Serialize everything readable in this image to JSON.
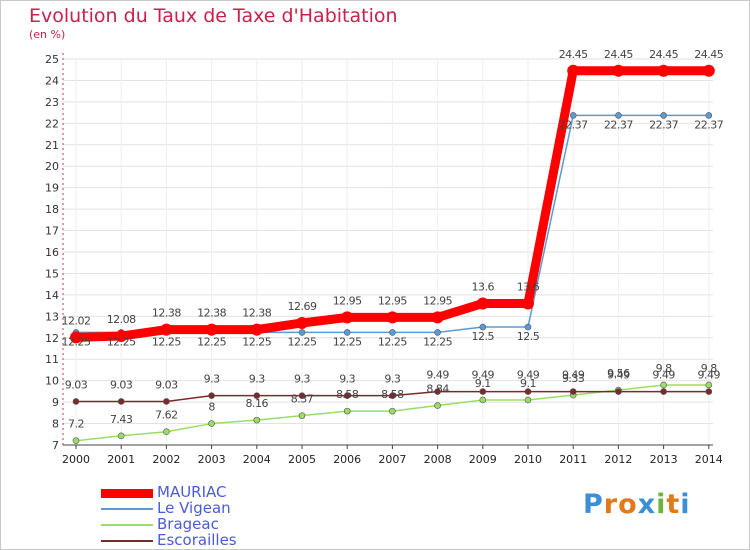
{
  "chart_data": {
    "type": "line",
    "title": "Evolution du Taux de Taxe d'Habitation",
    "subtitle": "(en %)",
    "categories": [
      "2000",
      "2001",
      "2002",
      "2003",
      "2004",
      "2005",
      "2006",
      "2007",
      "2008",
      "2009",
      "2010",
      "2011",
      "2012",
      "2013",
      "2014"
    ],
    "ylim": [
      7,
      25
    ],
    "yticks": [
      7,
      8,
      9,
      10,
      11,
      12,
      13,
      14,
      15,
      16,
      17,
      18,
      19,
      20,
      21,
      22,
      23,
      24,
      25
    ],
    "grid": true,
    "legend_position": "bottom-left",
    "series": [
      {
        "name": "MAURIAC",
        "color": "#ff0000",
        "values": [
          12.02,
          12.08,
          12.38,
          12.38,
          12.38,
          12.69,
          12.95,
          12.95,
          12.95,
          13.6,
          13.6,
          24.45,
          24.45,
          24.45,
          24.45
        ]
      },
      {
        "name": "Le Vigean",
        "color": "#5b9bd5",
        "values": [
          12.25,
          12.25,
          12.25,
          12.25,
          12.25,
          12.25,
          12.25,
          12.25,
          12.25,
          12.5,
          12.5,
          22.37,
          22.37,
          22.37,
          22.37
        ]
      },
      {
        "name": "Brageac",
        "color": "#99dd66",
        "values": [
          7.2,
          7.43,
          7.62,
          8,
          8.16,
          8.37,
          8.58,
          8.58,
          8.84,
          9.1,
          9.1,
          9.33,
          9.56,
          9.8,
          9.8
        ]
      },
      {
        "name": "Escorailles",
        "color": "#7a2a2a",
        "values": [
          9.03,
          9.03,
          9.03,
          9.3,
          9.3,
          9.3,
          9.3,
          9.3,
          9.49,
          9.49,
          9.49,
          9.49,
          9.49,
          9.49,
          9.49
        ]
      }
    ]
  },
  "logo": {
    "text": "Proxiti",
    "letters": [
      "P",
      "r",
      "o",
      "x",
      "i",
      "t",
      "i"
    ],
    "colors": [
      "#3a8fd8",
      "#e07a1a",
      "#e07a1a",
      "#3a8fd8",
      "#6fb43a",
      "#e07a1a",
      "#3a8fd8"
    ]
  }
}
